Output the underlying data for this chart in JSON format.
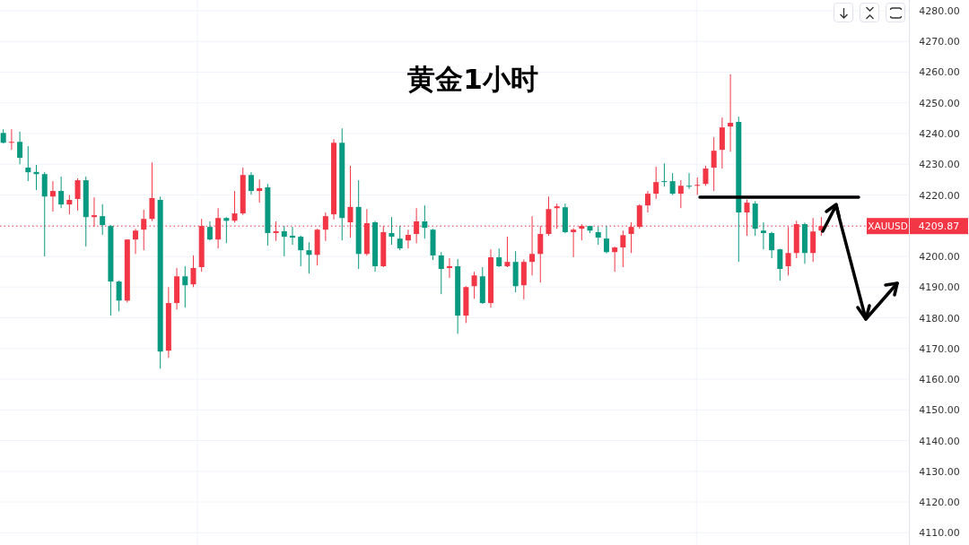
{
  "chart_data": {
    "type": "candlestick",
    "title": "黄金1小时",
    "categories": [
      null,
      null,
      null,
      null,
      null,
      null,
      null,
      null,
      null,
      null,
      null,
      null,
      null,
      null,
      null,
      null,
      null,
      null,
      null,
      null,
      null,
      null,
      null,
      null,
      null,
      null,
      null,
      null,
      null,
      null,
      null,
      null,
      null,
      null,
      null,
      null,
      null,
      null,
      null,
      null,
      null,
      null,
      null,
      null,
      null,
      null,
      null,
      null,
      null,
      null,
      null,
      null,
      null,
      null,
      null,
      null,
      null,
      null,
      null,
      null,
      null,
      null,
      null,
      null,
      null,
      null,
      null,
      null,
      null,
      null,
      null,
      null,
      null,
      null,
      null,
      null,
      null,
      null,
      null,
      null,
      null,
      null,
      null,
      null,
      null,
      null,
      null,
      null,
      null,
      null,
      null,
      null,
      null,
      null,
      null,
      null,
      null,
      null,
      null,
      null,
      null,
      null,
      null,
      null,
      null,
      null,
      null,
      null,
      null,
      null
    ],
    "ohlc": [
      [
        4240.2,
        4241.4,
        4236.8,
        4237.0
      ],
      [
        4237.0,
        4241.4,
        4234.7,
        4237.3
      ],
      [
        4237.3,
        4240.6,
        4230.0,
        4232.1
      ],
      [
        4228.9,
        4235.9,
        4224.5,
        4227.4
      ],
      [
        4227.5,
        4229.8,
        4221.6,
        4226.8
      ],
      [
        4226.8,
        4227.5,
        4200.0,
        4219.5
      ],
      [
        4219.5,
        4224.5,
        4214.6,
        4221.3
      ],
      [
        4221.3,
        4226.0,
        4215.7,
        4216.9
      ],
      [
        4216.9,
        4220.0,
        4213.7,
        4218.4
      ],
      [
        4218.7,
        4225.4,
        4214.9,
        4224.8
      ],
      [
        4224.8,
        4226.0,
        4203.2,
        4212.8
      ],
      [
        4212.8,
        4219.2,
        4209.6,
        4213.4
      ],
      [
        4213.1,
        4217.0,
        4207.0,
        4210.2
      ],
      [
        4209.9,
        4210.2,
        4180.7,
        4191.8
      ],
      [
        4191.8,
        4192.1,
        4182.1,
        4185.6
      ],
      [
        4185.6,
        4205.5,
        4185.0,
        4205.5
      ],
      [
        4205.5,
        4209.0,
        4200.8,
        4208.4
      ],
      [
        4208.7,
        4215.2,
        4202.0,
        4212.2
      ],
      [
        4212.2,
        4230.6,
        4211.5,
        4219.0
      ],
      [
        4218.4,
        4219.5,
        4163.4,
        4169.0
      ],
      [
        4169.3,
        4190.0,
        4167.0,
        4184.8
      ],
      [
        4184.8,
        4196.2,
        4182.7,
        4193.5
      ],
      [
        4193.5,
        4196.8,
        4183.3,
        4190.6
      ],
      [
        4190.9,
        4200.3,
        4190.0,
        4196.2
      ],
      [
        4196.5,
        4212.2,
        4195.0,
        4209.9
      ],
      [
        4209.6,
        4211.4,
        4205.2,
        4205.5
      ],
      [
        4205.5,
        4215.7,
        4202.6,
        4212.5
      ],
      [
        4212.5,
        4212.8,
        4204.3,
        4211.6
      ],
      [
        4211.6,
        4221.3,
        4211.0,
        4214.0
      ],
      [
        4214.0,
        4228.9,
        4213.5,
        4226.5
      ],
      [
        4226.5,
        4227.4,
        4220.1,
        4221.3
      ],
      [
        4221.3,
        4225.0,
        4217.5,
        4222.2
      ],
      [
        4222.5,
        4223.6,
        4203.5,
        4207.6
      ],
      [
        4207.6,
        4211.4,
        4205.0,
        4208.2
      ],
      [
        4208.2,
        4209.9,
        4200.0,
        4206.4
      ],
      [
        4206.7,
        4209.6,
        4203.8,
        4206.1
      ],
      [
        4206.4,
        4206.8,
        4196.8,
        4202.0
      ],
      [
        4202.0,
        4204.6,
        4194.4,
        4200.5
      ],
      [
        4200.5,
        4209.0,
        4197.0,
        4208.7
      ],
      [
        4208.7,
        4214.3,
        4205.0,
        4213.1
      ],
      [
        4213.7,
        4238.2,
        4212.0,
        4237.0
      ],
      [
        4237.0,
        4241.7,
        4205.2,
        4212.5
      ],
      [
        4211.1,
        4229.5,
        4206.1,
        4216.1
      ],
      [
        4216.1,
        4224.8,
        4195.9,
        4200.8
      ],
      [
        4200.8,
        4215.4,
        4200.2,
        4210.8
      ],
      [
        4211.1,
        4211.5,
        4195.0,
        4196.8
      ],
      [
        4196.8,
        4209.9,
        4196.5,
        4207.9
      ],
      [
        4207.6,
        4212.8,
        4203.8,
        4206.4
      ],
      [
        4205.8,
        4209.9,
        4202.0,
        4202.6
      ],
      [
        4205.2,
        4208.7,
        4202.6,
        4207.0
      ],
      [
        4207.3,
        4215.7,
        4204.3,
        4211.4
      ],
      [
        4211.4,
        4216.6,
        4205.8,
        4209.3
      ],
      [
        4208.7,
        4209.0,
        4198.8,
        4200.3
      ],
      [
        4200.3,
        4201.4,
        4187.7,
        4195.9
      ],
      [
        4196.2,
        4199.4,
        4193.0,
        4196.8
      ],
      [
        4196.8,
        4199.1,
        4174.8,
        4180.7
      ],
      [
        4180.7,
        4190.3,
        4178.3,
        4190.0
      ],
      [
        4190.3,
        4195.0,
        4186.2,
        4193.8
      ],
      [
        4193.5,
        4196.5,
        4184.5,
        4184.8
      ],
      [
        4184.8,
        4202.3,
        4183.3,
        4199.7
      ],
      [
        4199.7,
        4202.6,
        4196.5,
        4196.8
      ],
      [
        4196.8,
        4206.4,
        4196.5,
        4198.2
      ],
      [
        4198.2,
        4201.7,
        4188.3,
        4190.3
      ],
      [
        4190.6,
        4199.0,
        4186.0,
        4198.2
      ],
      [
        4198.2,
        4213.1,
        4193.8,
        4200.8
      ],
      [
        4200.8,
        4209.9,
        4191.5,
        4207.3
      ],
      [
        4207.3,
        4219.5,
        4206.7,
        4215.4
      ],
      [
        4215.7,
        4217.2,
        4209.0,
        4216.3
      ],
      [
        4216.0,
        4217.2,
        4207.5,
        4207.9
      ],
      [
        4207.9,
        4209.2,
        4199.7,
        4208.7
      ],
      [
        4209.0,
        4210.5,
        4205.2,
        4209.9
      ],
      [
        4209.9,
        4209.9,
        4207.6,
        4208.4
      ],
      [
        4207.9,
        4209.6,
        4203.8,
        4206.1
      ],
      [
        4205.8,
        4209.9,
        4201.0,
        4201.4
      ],
      [
        4201.4,
        4203.2,
        4195.0,
        4202.9
      ],
      [
        4202.9,
        4208.4,
        4196.5,
        4206.9
      ],
      [
        4207.3,
        4211.1,
        4201.1,
        4209.6
      ],
      [
        4209.6,
        4217.0,
        4209.0,
        4216.6
      ],
      [
        4216.6,
        4221.3,
        4214.3,
        4220.4
      ],
      [
        4220.4,
        4229.2,
        4218.7,
        4224.2
      ],
      [
        4224.5,
        4230.3,
        4222.7,
        4224.2
      ],
      [
        4224.5,
        4227.1,
        4220.0,
        4220.4
      ],
      [
        4220.4,
        4224.8,
        4215.7,
        4223.0
      ],
      [
        4223.0,
        4227.1,
        4222.0,
        4222.7
      ],
      [
        4223.0,
        4225.7,
        4220.0,
        4223.3
      ],
      [
        4223.6,
        4229.5,
        4223.0,
        4228.6
      ],
      [
        4228.9,
        4238.8,
        4221.3,
        4234.4
      ],
      [
        4234.7,
        4245.2,
        4228.6,
        4242.0
      ],
      [
        4242.3,
        4259.3,
        4234.1,
        4243.5
      ],
      [
        4243.8,
        4245.5,
        4198.2,
        4214.3
      ],
      [
        4214.3,
        4218.5,
        4206.7,
        4217.5
      ],
      [
        4217.2,
        4218.0,
        4206.7,
        4209.0
      ],
      [
        4208.4,
        4211.1,
        4202.3,
        4207.6
      ],
      [
        4207.6,
        4208.0,
        4199.4,
        4202.0
      ],
      [
        4202.3,
        4202.5,
        4192.1,
        4195.9
      ],
      [
        4196.8,
        4209.6,
        4193.8,
        4201.1
      ],
      [
        4201.1,
        4211.6,
        4199.4,
        4210.5
      ],
      [
        4210.5,
        4211.0,
        4197.6,
        4201.1
      ],
      [
        4201.1,
        4212.5,
        4198.2,
        4208.1
      ],
      [
        4208.4,
        4212.8,
        4206.7,
        4209.87
      ],
      null,
      null,
      null,
      null,
      null,
      null,
      null,
      null,
      null,
      null
    ],
    "ylim": [
      4106,
      4283.5
    ],
    "yticks": [
      {
        "value": 4110,
        "label": "4110.00"
      },
      {
        "value": 4120,
        "label": "4120.00"
      },
      {
        "value": 4130,
        "label": "4130.00"
      },
      {
        "value": 4140,
        "label": "4140.00"
      },
      {
        "value": 4150,
        "label": "4150.00"
      },
      {
        "value": 4160,
        "label": "4160.00"
      },
      {
        "value": 4170,
        "label": "4170.00"
      },
      {
        "value": 4180,
        "label": "4180.00"
      },
      {
        "value": 4190,
        "label": "4190.00"
      },
      {
        "value": 4200,
        "label": "4200.00"
      },
      {
        "value": 4210,
        "label": null
      },
      {
        "value": 4220,
        "label": "4220.00"
      },
      {
        "value": 4230,
        "label": "4230.00"
      },
      {
        "value": 4240,
        "label": "4240.00"
      },
      {
        "value": 4250,
        "label": "4250.00"
      },
      {
        "value": 4260,
        "label": "4260.00"
      },
      {
        "value": 4270,
        "label": "4270.00"
      },
      {
        "value": 4280,
        "label": "4280.00"
      }
    ],
    "grid": true,
    "tick_labels": "y",
    "annotations": [
      "4209.87"
    ],
    "ref_lines": [
      {
        "axis": "y",
        "value": 4209.87,
        "label": "XAUUSD",
        "color": "#f23645",
        "line_style": "dotted"
      }
    ]
  }
}
